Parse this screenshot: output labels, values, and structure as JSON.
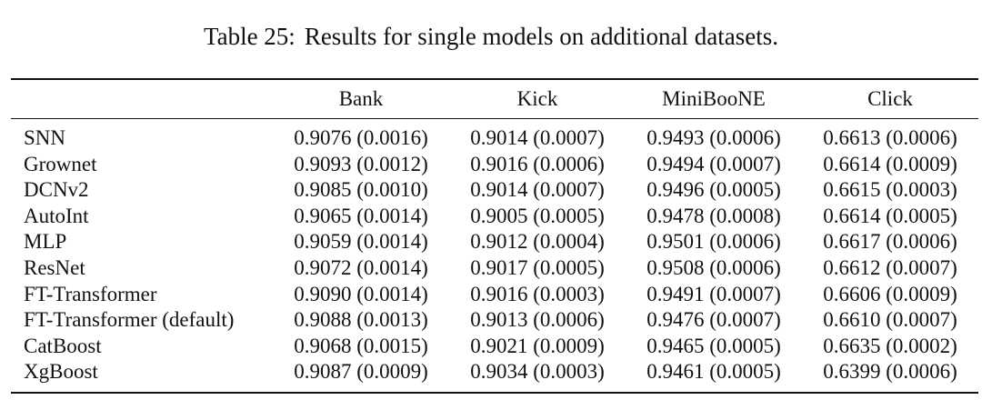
{
  "caption": {
    "label": "Table 25:",
    "text": "Results for single models on additional datasets."
  },
  "columns": [
    "",
    "Bank",
    "Kick",
    "MiniBooNE",
    "Click"
  ],
  "rows": [
    {
      "model": "SNN",
      "values": [
        "0.9076 (0.0016)",
        "0.9014 (0.0007)",
        "0.9493 (0.0006)",
        "0.6613 (0.0006)"
      ]
    },
    {
      "model": "Grownet",
      "values": [
        "0.9093 (0.0012)",
        "0.9016 (0.0006)",
        "0.9494 (0.0007)",
        "0.6614 (0.0009)"
      ]
    },
    {
      "model": "DCNv2",
      "values": [
        "0.9085 (0.0010)",
        "0.9014 (0.0007)",
        "0.9496 (0.0005)",
        "0.6615 (0.0003)"
      ]
    },
    {
      "model": "AutoInt",
      "values": [
        "0.9065 (0.0014)",
        "0.9005 (0.0005)",
        "0.9478 (0.0008)",
        "0.6614 (0.0005)"
      ]
    },
    {
      "model": "MLP",
      "values": [
        "0.9059 (0.0014)",
        "0.9012 (0.0004)",
        "0.9501 (0.0006)",
        "0.6617 (0.0006)"
      ]
    },
    {
      "model": "ResNet",
      "values": [
        "0.9072 (0.0014)",
        "0.9017 (0.0005)",
        "0.9508 (0.0006)",
        "0.6612 (0.0007)"
      ]
    },
    {
      "model": "FT-Transformer",
      "values": [
        "0.9090 (0.0014)",
        "0.9016 (0.0003)",
        "0.9491 (0.0007)",
        "0.6606 (0.0009)"
      ]
    },
    {
      "model": "FT-Transformer (default)",
      "values": [
        "0.9088 (0.0013)",
        "0.9013 (0.0006)",
        "0.9476 (0.0007)",
        "0.6610 (0.0007)"
      ]
    },
    {
      "model": "CatBoost",
      "values": [
        "0.9068 (0.0015)",
        "0.9021 (0.0009)",
        "0.9465 (0.0005)",
        "0.6635 (0.0002)"
      ]
    },
    {
      "model": "XgBoost",
      "values": [
        "0.9087 (0.0009)",
        "0.9034 (0.0003)",
        "0.9461 (0.0005)",
        "0.6399 (0.0006)"
      ]
    }
  ]
}
